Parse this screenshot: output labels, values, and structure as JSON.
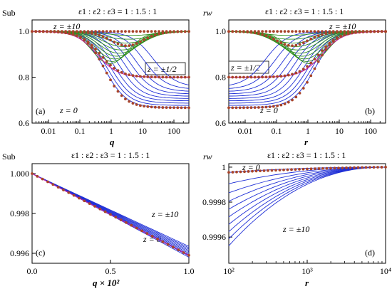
{
  "colors": {
    "blue": "#1f2fd6",
    "green": "#2f8f1f",
    "magenta": "#cc1f9c",
    "dots": "#a8442a"
  },
  "chart_data": [
    {
      "id": "a",
      "type": "line",
      "panel_label": "(a)",
      "ylabel": "Sub",
      "xlabel": "q",
      "xscale": "log",
      "xlim": [
        0.003,
        300
      ],
      "ylim": [
        0.6,
        1.05
      ],
      "xticks": [
        "0.01",
        "0.1",
        "1",
        "10",
        "100"
      ],
      "yticks": [
        "0.6",
        "0.8",
        "1.0"
      ],
      "title": "ε1 : ε2 : ε3 = 1 : 1.5 : 1",
      "annotations": [
        "z = ±10",
        "z = ±1/2",
        "z = 0"
      ],
      "limits": {
        "z=0": 0.667,
        "z=±1/2": 0.8,
        "z=±10": 1.0
      },
      "series": [
        {
          "name": "z = 0",
          "x": [
            0.003,
            0.1,
            0.3,
            1,
            3,
            10,
            300
          ],
          "y": [
            1.0,
            0.96,
            0.88,
            0.76,
            0.69,
            0.67,
            0.667
          ]
        },
        {
          "name": "z = ±1/2",
          "x": [
            0.003,
            0.1,
            0.3,
            1,
            3,
            10,
            300
          ],
          "y": [
            1.0,
            0.97,
            0.92,
            0.84,
            0.81,
            0.8,
            0.8
          ]
        },
        {
          "name": "z = ±10",
          "x": [
            0.003,
            0.01,
            0.03,
            0.1,
            0.3,
            1,
            300
          ],
          "y": [
            1.0,
            1.0,
            1.0,
            1.0,
            1.0,
            1.0,
            1.0
          ]
        }
      ]
    },
    {
      "id": "b",
      "type": "line",
      "panel_label": "(b)",
      "ylabel": "rw",
      "xlabel": "r",
      "xscale": "log",
      "xlim": [
        0.003,
        300
      ],
      "ylim": [
        0.6,
        1.05
      ],
      "xticks": [
        "0.01",
        "0.1",
        "1",
        "10",
        "100"
      ],
      "yticks": [
        "0.6",
        "0.8",
        "1.0"
      ],
      "title": "ε1 : ε2 : ε3 = 1 : 1.5 : 1",
      "annotations": [
        "z = ±10",
        "z = ±1/2",
        "z = 0"
      ],
      "limits": {
        "z=0": 0.667,
        "z=±1/2": 0.8,
        "z=±10": 1.0
      },
      "series": [
        {
          "name": "z = 0",
          "x": [
            0.003,
            0.1,
            0.3,
            1,
            3,
            10,
            300
          ],
          "y": [
            0.667,
            0.69,
            0.76,
            0.88,
            0.96,
            0.99,
            1.0
          ]
        },
        {
          "name": "z = ±1/2",
          "x": [
            0.003,
            0.1,
            0.3,
            1,
            3,
            10,
            300
          ],
          "y": [
            0.8,
            0.81,
            0.84,
            0.92,
            0.97,
            0.99,
            1.0
          ]
        },
        {
          "name": "z = ±10",
          "x": [
            0.003,
            0.01,
            0.1,
            1,
            10,
            300
          ],
          "y": [
            1.0,
            1.0,
            1.0,
            1.0,
            1.0,
            1.0
          ]
        }
      ]
    },
    {
      "id": "c",
      "type": "line",
      "panel_label": "(c)",
      "ylabel": "Sub",
      "xlabel": "q × 10²",
      "xscale": "linear",
      "xlim": [
        0,
        1
      ],
      "ylim": [
        0.9955,
        1.0005
      ],
      "xticks": [
        "0.0",
        "0.5",
        "1.0"
      ],
      "yticks": [
        "0.996",
        "0.998",
        "1.000"
      ],
      "title": "ε1 : ε2 : ε3 = 1 : 1.5 : 1",
      "annotations": [
        "z = ±10",
        "z = 0"
      ],
      "series": [
        {
          "name": "z = ±10",
          "x": [
            0,
            0.5,
            1.0
          ],
          "y": [
            1.0,
            0.9982,
            0.99635
          ]
        },
        {
          "name": "z = 0",
          "x": [
            0,
            0.5,
            1.0
          ],
          "y": [
            1.0,
            0.99795,
            0.9959
          ]
        }
      ]
    },
    {
      "id": "d",
      "type": "line",
      "panel_label": "(d)",
      "ylabel": "rw",
      "xlabel": "r",
      "xscale": "log",
      "xlim": [
        100,
        10000
      ],
      "ylim": [
        0.99945,
        1.00002
      ],
      "xticks": [
        "10²",
        "10³",
        "10⁴"
      ],
      "yticks": [
        "0.9996",
        "0.9998",
        "1"
      ],
      "title": "ε1 : ε2 : ε3 = 1 : 1.5 : 1",
      "annotations": [
        "z = 0",
        "z = ±10"
      ],
      "series": [
        {
          "name": "z = 0",
          "x": [
            100,
            1000,
            10000
          ],
          "y": [
            0.99997,
            0.999997,
            1.0
          ]
        },
        {
          "name": "z = ±10",
          "x": [
            100,
            300,
            1000,
            3000,
            10000
          ],
          "y": [
            0.99955,
            0.9997,
            0.99992,
            0.99999,
            1.0
          ]
        }
      ]
    }
  ]
}
